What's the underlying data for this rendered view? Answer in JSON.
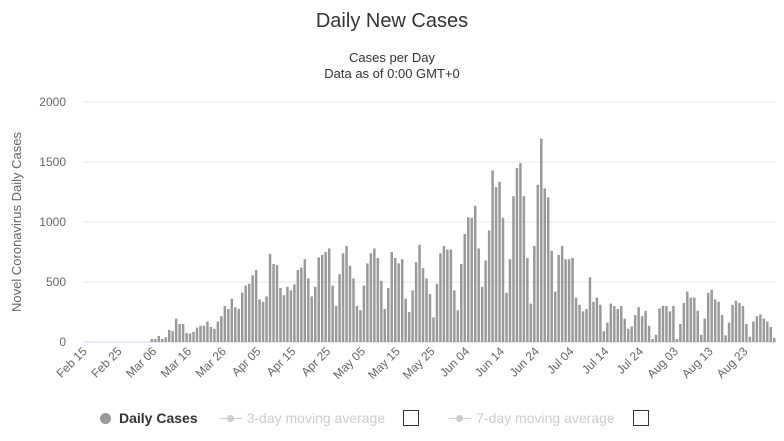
{
  "chart_data": {
    "type": "bar",
    "title": "Daily New Cases",
    "subtitle": "Cases per Day",
    "subtitle2": "Data as of 0:00 GMT+0",
    "ylabel": "Novel Coronavirus Daily Cases",
    "xlabel": "",
    "ylim": [
      0,
      2000
    ],
    "yticks": [
      "0",
      "500",
      "1000",
      "1500",
      "2000"
    ],
    "x_start": "Feb 15",
    "xticks": [
      "Feb 15",
      "Feb 25",
      "Mar 06",
      "Mar 16",
      "Mar 26",
      "Apr 05",
      "Apr 15",
      "Apr 25",
      "May 05",
      "May 15",
      "May 25",
      "Jun 04",
      "Jun 14",
      "Jun 24",
      "Jul 04",
      "Jul 14",
      "Jul 24",
      "Aug 03",
      "Aug 13",
      "Aug 23"
    ],
    "grid": true,
    "legend_position": "bottom-left",
    "series": [
      {
        "name": "Daily Cases",
        "color": "#999999",
        "values": [
          0,
          0,
          0,
          0,
          0,
          0,
          0,
          0,
          0,
          0,
          0,
          0,
          0,
          0,
          0,
          0,
          0,
          0,
          0,
          25,
          25,
          50,
          25,
          40,
          100,
          90,
          195,
          150,
          150,
          75,
          70,
          85,
          120,
          135,
          135,
          170,
          125,
          110,
          170,
          215,
          300,
          275,
          360,
          290,
          275,
          410,
          470,
          485,
          555,
          600,
          355,
          335,
          380,
          735,
          650,
          640,
          450,
          390,
          460,
          430,
          480,
          600,
          620,
          690,
          530,
          380,
          460,
          705,
          725,
          750,
          780,
          470,
          300,
          565,
          740,
          800,
          635,
          530,
          300,
          265,
          470,
          655,
          740,
          780,
          700,
          510,
          275,
          450,
          750,
          700,
          655,
          690,
          360,
          250,
          430,
          665,
          810,
          615,
          530,
          400,
          205,
          485,
          740,
          800,
          770,
          770,
          430,
          265,
          650,
          900,
          1040,
          1035,
          1135,
          780,
          460,
          680,
          930,
          1430,
          1290,
          1335,
          1035,
          410,
          690,
          1215,
          1450,
          1490,
          1215,
          700,
          320,
          800,
          1310,
          1695,
          1280,
          1205,
          760,
          420,
          725,
          800,
          690,
          690,
          700,
          370,
          310,
          255,
          275,
          540,
          335,
          370,
          310,
          90,
          160,
          320,
          300,
          275,
          300,
          195,
          110,
          130,
          225,
          290,
          215,
          260,
          135,
          25,
          60,
          280,
          300,
          300,
          255,
          300,
          25,
          150,
          325,
          420,
          370,
          370,
          260,
          60,
          195,
          410,
          435,
          355,
          335,
          225,
          55,
          160,
          310,
          345,
          325,
          300,
          150,
          45,
          170,
          215,
          230,
          195,
          170,
          125,
          35
        ]
      }
    ]
  },
  "legend": {
    "items": [
      "Daily Cases",
      "3-day moving average",
      "7-day moving average"
    ]
  }
}
